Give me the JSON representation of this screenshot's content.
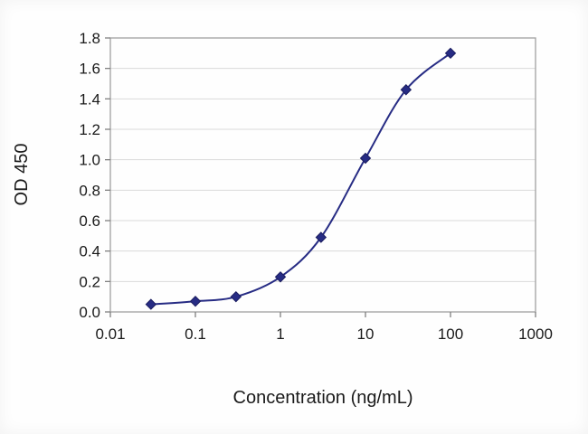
{
  "chart_data": {
    "type": "line",
    "title": "",
    "xlabel": "Concentration (ng/mL)",
    "ylabel": "OD 450",
    "x_scale": "log",
    "x": [
      0.03,
      0.1,
      0.3,
      1,
      3,
      10,
      30,
      100
    ],
    "y": [
      0.05,
      0.07,
      0.1,
      0.23,
      0.49,
      1.01,
      1.46,
      1.7
    ],
    "xlim": [
      0.01,
      1000
    ],
    "ylim": [
      0,
      1.8
    ],
    "x_ticks": [
      0.01,
      0.1,
      1,
      10,
      100,
      1000
    ],
    "x_tick_labels": [
      "0.01",
      "0.1",
      "1",
      "10",
      "100",
      "1000"
    ],
    "y_ticks": [
      0,
      0.2,
      0.4,
      0.6,
      0.8,
      1.0,
      1.2,
      1.4,
      1.6,
      1.8
    ],
    "y_tick_labels": [
      "0.0",
      "0.2",
      "0.4",
      "0.6",
      "0.8",
      "1.0",
      "1.2",
      "1.4",
      "1.6",
      "1.8"
    ],
    "grid": "horizontal",
    "legend": "none",
    "marker": "diamond",
    "line_color": "#272c84",
    "marker_edge_color": "#1a1c5e",
    "grid_color": "#d9d9d9",
    "border_color": "#a0a0a0",
    "tick_color": "#7f7f7f"
  }
}
